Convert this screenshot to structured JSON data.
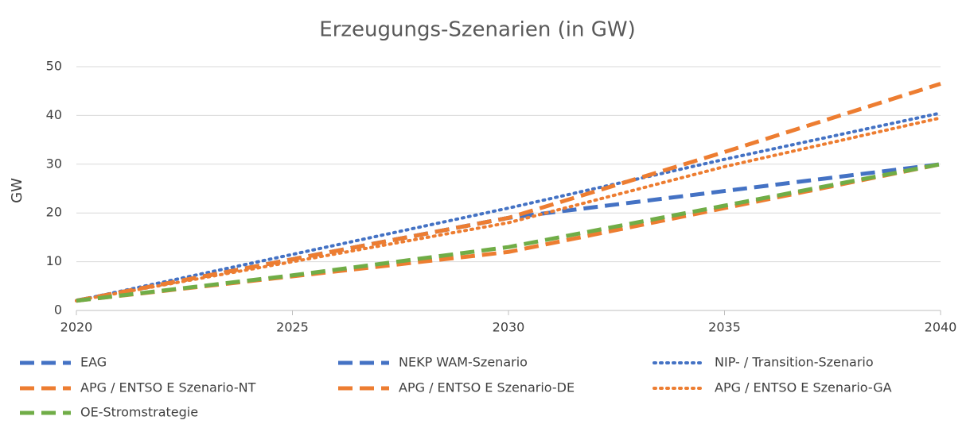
{
  "chart_data": {
    "type": "line",
    "title": "Erzeugungs-Szenarien (in GW)",
    "y_label": "GW",
    "x": [
      2020,
      2025,
      2030,
      2035,
      2040
    ],
    "xlim": [
      2020,
      2040
    ],
    "xticks": [
      2020,
      2025,
      2030,
      2035,
      2040
    ],
    "ylim": [
      0,
      50
    ],
    "yticks": [
      0,
      10,
      20,
      30,
      40,
      50
    ],
    "grid": true,
    "legend": "bottom",
    "series": [
      {
        "name": "EAG",
        "color": "#4472c4",
        "dash": "dashed",
        "values": [
          2,
          10.5,
          19,
          null,
          null
        ]
      },
      {
        "name": "NEKP WAM-Szenario",
        "color": "#4472c4",
        "dash": "dashed",
        "values": [
          2,
          10.5,
          19,
          24.5,
          30
        ]
      },
      {
        "name": "NIP- / Transition-Szenario",
        "color": "#4472c4",
        "dash": "dotted",
        "values": [
          2,
          11.5,
          21,
          31,
          40.5
        ]
      },
      {
        "name": "APG / ENTSO E Szenario-NT",
        "color": "#ed7d31",
        "dash": "dashed",
        "values": [
          2,
          10.5,
          19,
          32.5,
          46.5
        ]
      },
      {
        "name": "APG / ENTSO E Szenario-DE",
        "color": "#ed7d31",
        "dash": "dashed",
        "values": [
          2,
          7,
          12,
          21,
          30
        ]
      },
      {
        "name": "APG / ENTSO E Szenario-GA",
        "color": "#ed7d31",
        "dash": "dotted",
        "values": [
          2,
          10,
          18,
          29.5,
          39.5
        ]
      },
      {
        "name": "OE-Stromstrategie",
        "color": "#70ad47",
        "dash": "dashed",
        "values": [
          2,
          7.2,
          13,
          21.5,
          30
        ]
      }
    ]
  }
}
